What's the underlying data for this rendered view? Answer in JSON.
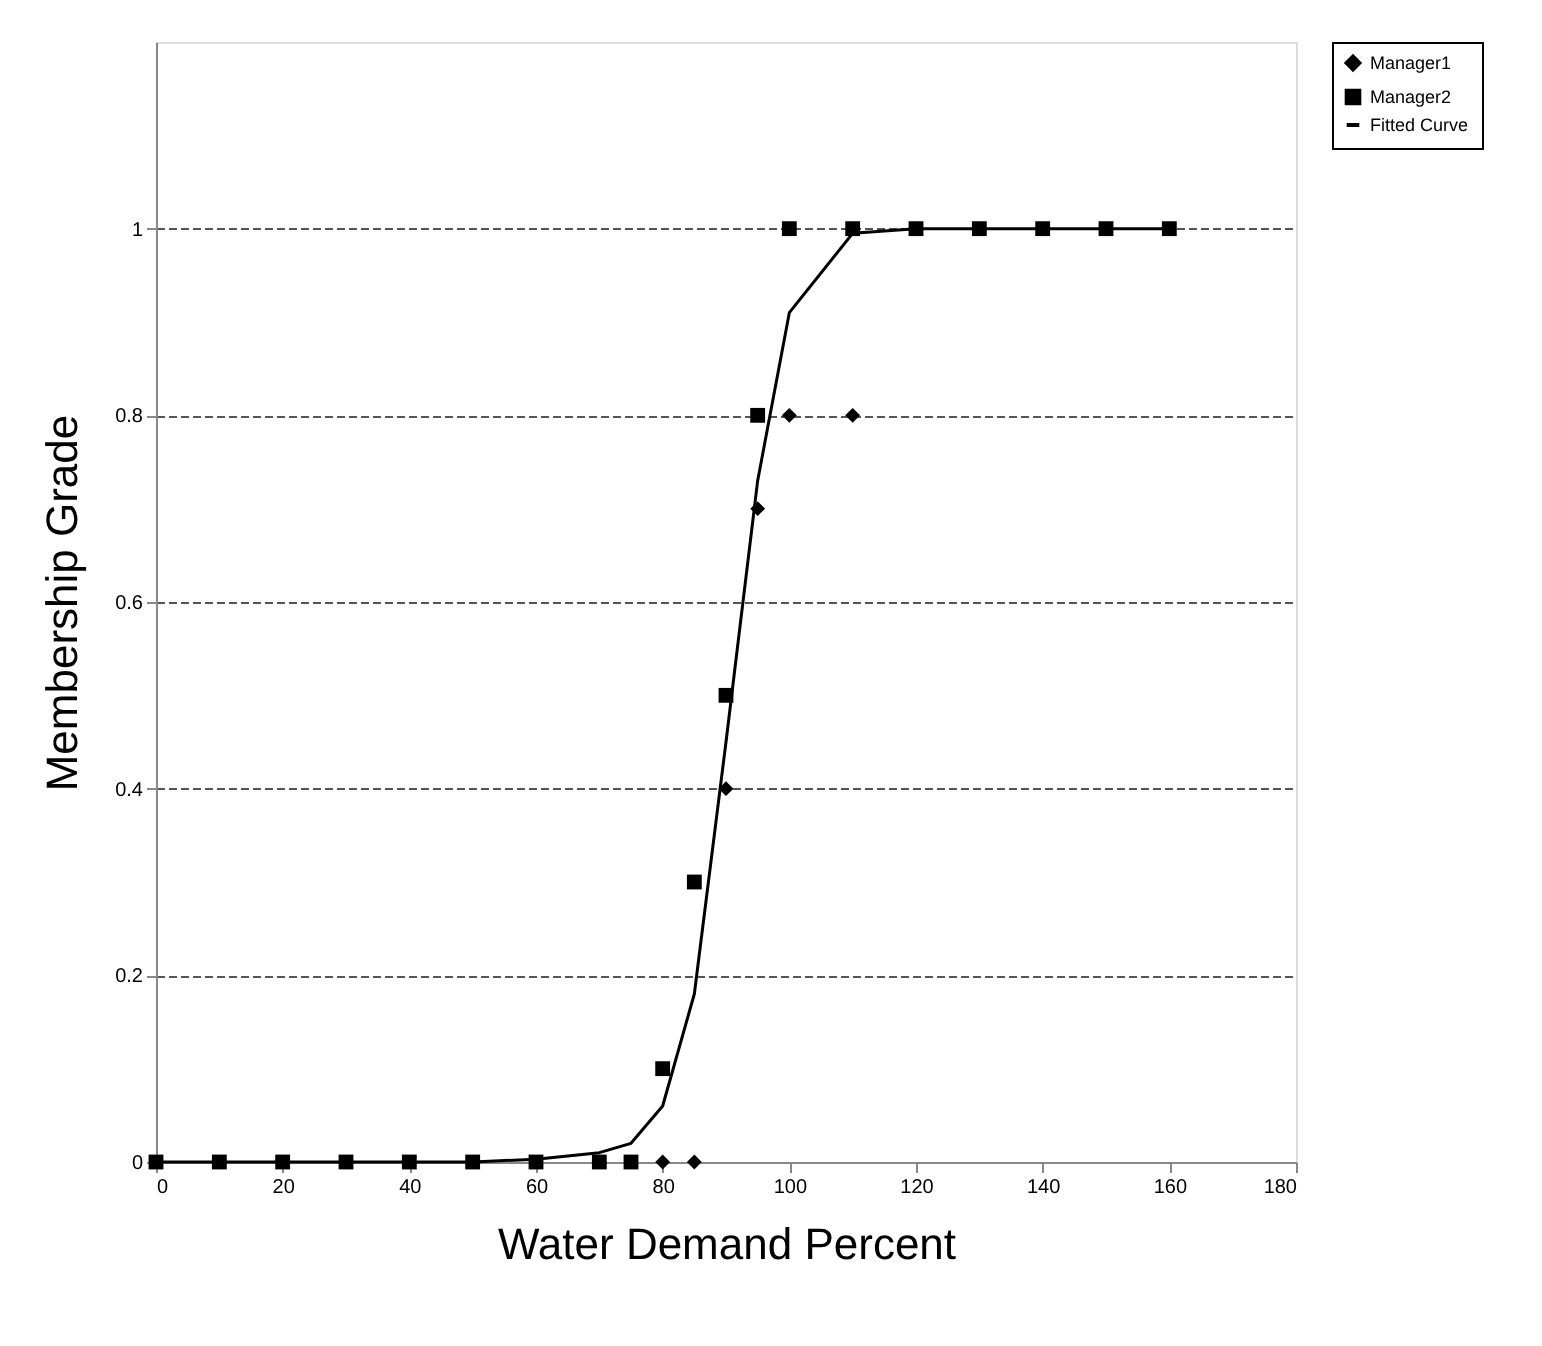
{
  "chart_data": {
    "type": "scatter",
    "xlabel": "Water Demand Percent",
    "ylabel": "Membership Grade",
    "xlim": [
      0,
      180
    ],
    "xticks": [
      0,
      20,
      40,
      60,
      80,
      100,
      120,
      140,
      160,
      180
    ],
    "ylim": [
      0,
      1.2
    ],
    "yticks": [
      0,
      0.2,
      0.4,
      0.6,
      0.8,
      1
    ],
    "grid": "y",
    "legend": "right",
    "series": [
      {
        "name": "Manager1",
        "marker": "diamond",
        "color": "#000000",
        "x": [
          80,
          85,
          90,
          95,
          100,
          110
        ],
        "values": [
          0,
          0,
          0.4,
          0.7,
          0.8,
          0.8
        ]
      },
      {
        "name": "Manager2",
        "marker": "square",
        "color": "#000000",
        "x": [
          0,
          10,
          20,
          30,
          40,
          50,
          60,
          70,
          75,
          80,
          85,
          90,
          95,
          100,
          110,
          120,
          130,
          140,
          150,
          160
        ],
        "values": [
          0,
          0,
          0,
          0,
          0,
          0,
          0,
          0,
          0,
          0.1,
          0.3,
          0.5,
          0.8,
          1,
          1,
          1,
          1,
          1,
          1,
          1
        ]
      },
      {
        "name": "Fitted Curve",
        "type": "line",
        "marker": "none",
        "color": "#000000",
        "x": [
          0,
          10,
          20,
          30,
          40,
          50,
          60,
          70,
          75,
          80,
          85,
          90,
          95,
          100,
          110,
          120,
          130,
          140,
          150,
          160
        ],
        "values": [
          0,
          0,
          0,
          0,
          0,
          0,
          0.003,
          0.01,
          0.02,
          0.06,
          0.18,
          0.45,
          0.73,
          0.91,
          0.995,
          1,
          1,
          1,
          1,
          1
        ]
      }
    ]
  }
}
